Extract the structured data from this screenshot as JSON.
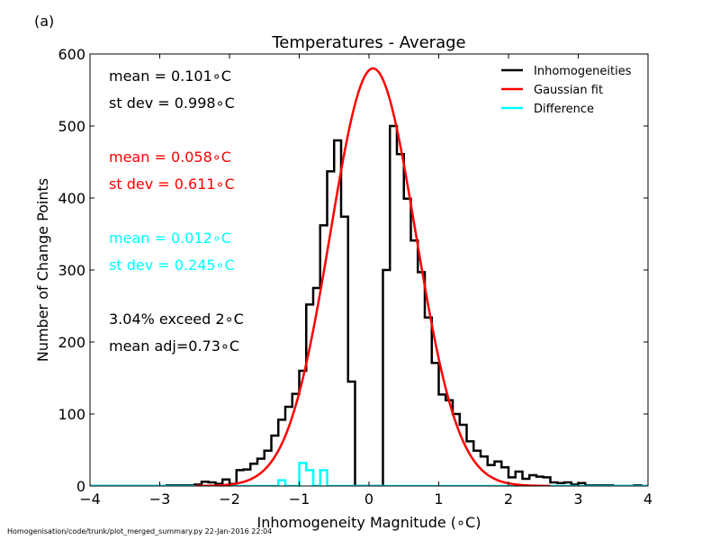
{
  "panel_label": "(a)",
  "footer": "Homogenisation/code/trunk/plot_merged_summary.py   22-Jan-2016 22:04",
  "chart_data": {
    "type": "line",
    "title": "Temperatures - Average",
    "xlabel": "Inhomogeneity Magnitude (∘C)",
    "ylabel": "Number of Change Points",
    "xlim": [
      -4,
      4
    ],
    "ylim": [
      0,
      600
    ],
    "xticks": [
      -4,
      -3,
      -2,
      -1,
      0,
      1,
      2,
      3,
      4
    ],
    "yticks": [
      0,
      100,
      200,
      300,
      400,
      500,
      600
    ],
    "grid": false,
    "legend_position": "top-right",
    "series": [
      {
        "name": "Inhomogeneities",
        "kind": "step",
        "color": "#000000",
        "bin_width": 0.1,
        "bin_starts": [
          -4.0,
          -3.9,
          -3.8,
          -3.7,
          -3.6,
          -3.5,
          -3.4,
          -3.3,
          -3.2,
          -3.1,
          -3.0,
          -2.9,
          -2.8,
          -2.7,
          -2.6,
          -2.5,
          -2.4,
          -2.3,
          -2.2,
          -2.1,
          -2.0,
          -1.9,
          -1.8,
          -1.7,
          -1.6,
          -1.5,
          -1.4,
          -1.3,
          -1.2,
          -1.1,
          -1.0,
          -0.9,
          -0.8,
          -0.7,
          -0.6,
          -0.5,
          -0.4,
          -0.3,
          -0.2,
          -0.1,
          0.0,
          0.1,
          0.2,
          0.3,
          0.4,
          0.5,
          0.6,
          0.7,
          0.8,
          0.9,
          1.0,
          1.1,
          1.2,
          1.3,
          1.4,
          1.5,
          1.6,
          1.7,
          1.8,
          1.9,
          2.0,
          2.1,
          2.2,
          2.3,
          2.4,
          2.5,
          2.6,
          2.7,
          2.8,
          2.9,
          3.0,
          3.1,
          3.2,
          3.3,
          3.4,
          3.5,
          3.6,
          3.7,
          3.8,
          3.9
        ],
        "values": [
          0,
          0,
          0,
          0,
          0,
          0,
          0,
          0,
          0,
          0,
          0,
          1,
          1,
          1,
          1,
          2,
          6,
          5,
          3,
          9,
          3,
          22,
          23,
          31,
          38,
          49,
          70,
          92,
          110,
          128,
          160,
          252,
          275,
          362,
          437,
          480,
          374,
          145,
          0,
          0,
          0,
          0,
          300,
          500,
          461,
          399,
          341,
          297,
          234,
          171,
          127,
          119,
          100,
          85,
          62,
          49,
          41,
          29,
          34,
          26,
          12,
          20,
          10,
          15,
          13,
          12,
          5,
          4,
          5,
          2,
          4,
          1,
          1,
          1,
          1,
          0,
          0,
          0,
          1,
          0
        ]
      },
      {
        "name": "Gaussian fit",
        "kind": "curve",
        "color": "#ff0000",
        "mean": 0.058,
        "sd": 0.611,
        "peak": 580,
        "x_range": [
          -2.5,
          2.6
        ]
      },
      {
        "name": "Difference",
        "kind": "step",
        "color": "#00ffff",
        "bin_width": 0.1,
        "bin_starts": [
          -4.0,
          -3.9,
          -3.8,
          -3.7,
          -3.6,
          -3.5,
          -3.4,
          -3.3,
          -3.2,
          -3.1,
          -3.0,
          -2.9,
          -2.8,
          -2.7,
          -2.6,
          -2.5,
          -2.4,
          -2.3,
          -2.2,
          -2.1,
          -2.0,
          -1.9,
          -1.8,
          -1.7,
          -1.6,
          -1.5,
          -1.4,
          -1.3,
          -1.2,
          -1.1,
          -1.0,
          -0.9,
          -0.8,
          -0.7,
          -0.6,
          -0.5,
          -0.4,
          -0.3,
          -0.2,
          -0.1,
          0.0,
          0.1,
          0.2,
          0.3,
          0.4,
          0.5,
          0.6,
          0.7,
          0.8,
          0.9,
          1.0,
          1.1,
          1.2,
          1.3,
          1.4,
          1.5,
          1.6,
          1.7,
          1.8,
          1.9,
          2.0,
          2.1,
          2.2,
          2.3,
          2.4,
          2.5,
          2.6,
          2.7,
          2.8,
          2.9,
          3.0,
          3.1,
          3.2,
          3.3,
          3.4,
          3.5,
          3.6,
          3.7,
          3.8,
          3.9
        ],
        "values": [
          0,
          0,
          0,
          0,
          0,
          0,
          0,
          0,
          0,
          0,
          0,
          0,
          0,
          0,
          0,
          0,
          0,
          0,
          0,
          0,
          0,
          0,
          0,
          0,
          0,
          0,
          0,
          8,
          0,
          0,
          32,
          22,
          0,
          22,
          0,
          0,
          0,
          0,
          0,
          0,
          0,
          0,
          0,
          0,
          0,
          0,
          0,
          0,
          0,
          0,
          0,
          0,
          0,
          0,
          0,
          0,
          0,
          0,
          0,
          0,
          0,
          0,
          0,
          0,
          0,
          0,
          0,
          0,
          0,
          0,
          0,
          0,
          0,
          0,
          0,
          0,
          0,
          0,
          0,
          0
        ]
      }
    ],
    "annotations": [
      {
        "text": "mean =  0.101∘C",
        "color": "#000000"
      },
      {
        "text": "st dev =  0.998∘C",
        "color": "#000000"
      },
      {
        "text": "mean =  0.058∘C",
        "color": "#ff0000"
      },
      {
        "text": "st dev =  0.611∘C",
        "color": "#ff0000"
      },
      {
        "text": "mean =  0.012∘C",
        "color": "#00ffff"
      },
      {
        "text": "st dev =  0.245∘C",
        "color": "#00ffff"
      },
      {
        "text": "3.04% exceed 2∘C",
        "color": "#000000"
      },
      {
        "text": "mean adj=0.73∘C",
        "color": "#000000"
      }
    ]
  }
}
